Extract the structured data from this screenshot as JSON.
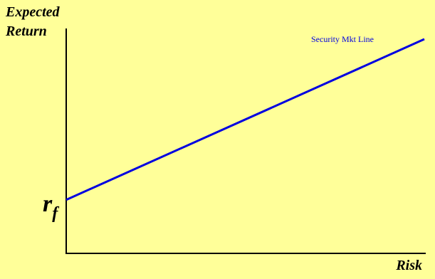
{
  "background": "#ffff99",
  "chart_data": {
    "type": "line",
    "title": "",
    "ylabel": [
      "Expected",
      "Return"
    ],
    "xlabel": "Risk",
    "y_tick_label": {
      "base": "r",
      "subscript": "f"
    },
    "xlim": [
      0,
      100
    ],
    "ylim": [
      0,
      100
    ],
    "grid": false,
    "series": [
      {
        "name": "Security Mkt Line",
        "color": "#0000e0",
        "x": [
          0,
          100
        ],
        "y": [
          25,
          100
        ]
      }
    ]
  }
}
